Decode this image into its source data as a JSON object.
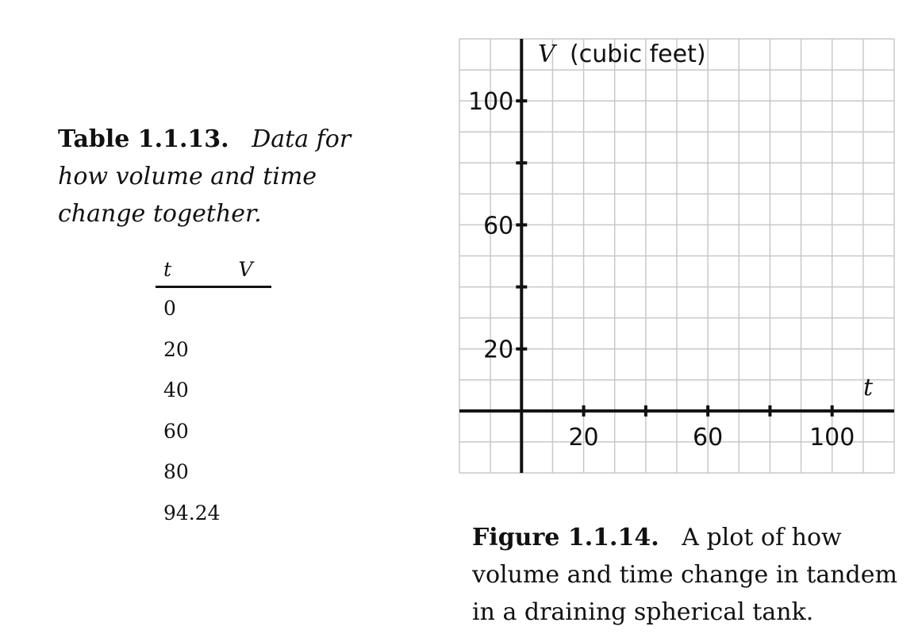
{
  "table": {
    "caption_label": "Table 1.1.13.",
    "caption_text": "Data for how volume and time change together.",
    "headers": [
      "t",
      "V"
    ],
    "rows": [
      {
        "t": "0",
        "V": ""
      },
      {
        "t": "20",
        "V": ""
      },
      {
        "t": "40",
        "V": ""
      },
      {
        "t": "60",
        "V": ""
      },
      {
        "t": "80",
        "V": ""
      },
      {
        "t": "94.24",
        "V": ""
      }
    ]
  },
  "figure": {
    "caption_label": "Figure 1.1.14.",
    "caption_text": "A plot of how volume and time change in tandem in a draining spherical tank."
  },
  "chart_data": {
    "type": "scatter",
    "title": "",
    "xlabel": "t",
    "ylabel": "V",
    "ylabel_unit": "(cubic feet)",
    "xlim": [
      -20,
      120
    ],
    "ylim": [
      -20,
      120
    ],
    "x_ticks": [
      20,
      40,
      60,
      80,
      100
    ],
    "x_tick_labels": [
      "20",
      "60",
      "100"
    ],
    "x_tick_label_values": [
      20,
      60,
      100
    ],
    "y_ticks": [
      20,
      40,
      60,
      80,
      100
    ],
    "y_tick_labels": [
      "20",
      "60",
      "100"
    ],
    "y_tick_label_values": [
      20,
      60,
      100
    ],
    "grid": true,
    "grid_step": 10,
    "series": []
  }
}
